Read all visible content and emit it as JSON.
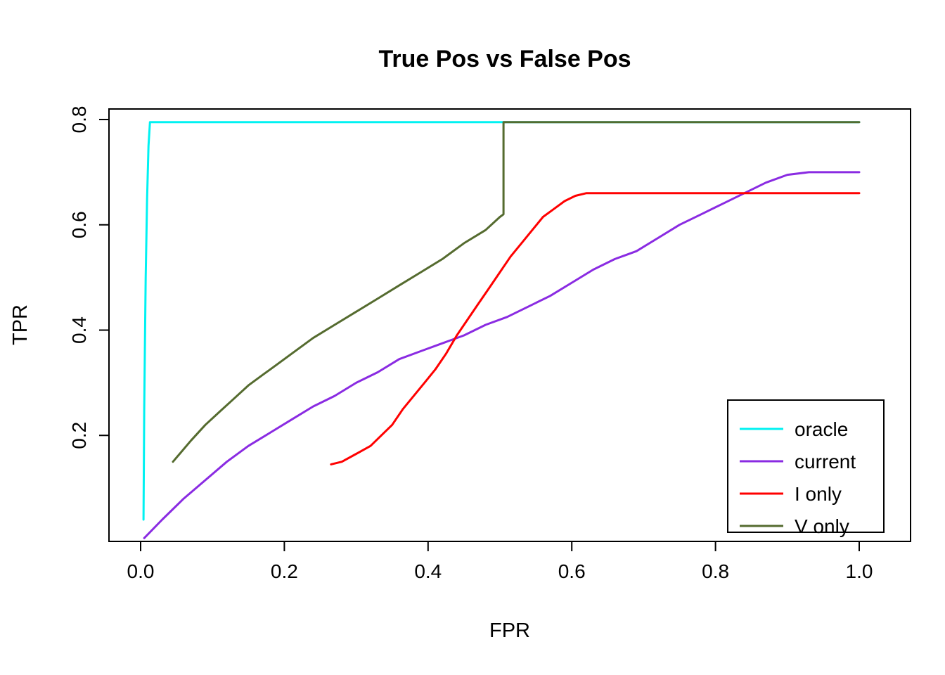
{
  "title": "True Pos vs False Pos",
  "xlabel": "FPR",
  "ylabel": "TPR",
  "chart_data": {
    "type": "line",
    "title": "True Pos vs False Pos",
    "xlabel": "FPR",
    "ylabel": "TPR",
    "xlim": [
      0,
      1
    ],
    "ylim": [
      0,
      0.82
    ],
    "x_ticks": [
      0.0,
      0.2,
      0.4,
      0.6,
      0.8,
      1.0
    ],
    "y_ticks": [
      0.2,
      0.4,
      0.6,
      0.8
    ],
    "grid": false,
    "legend_position": "bottom-right",
    "legend_entries": [
      "oracle",
      "current",
      "I only",
      "V only"
    ],
    "series": [
      {
        "name": "oracle",
        "color": "#00F2F2",
        "points": [
          [
            0.004,
            0.04
          ],
          [
            0.005,
            0.25
          ],
          [
            0.007,
            0.5
          ],
          [
            0.009,
            0.65
          ],
          [
            0.011,
            0.75
          ],
          [
            0.013,
            0.795
          ],
          [
            1.0,
            0.795
          ]
        ]
      },
      {
        "name": "current",
        "color": "#8A2BE2",
        "points": [
          [
            0.005,
            0.005
          ],
          [
            0.03,
            0.04
          ],
          [
            0.06,
            0.08
          ],
          [
            0.09,
            0.115
          ],
          [
            0.12,
            0.15
          ],
          [
            0.15,
            0.18
          ],
          [
            0.18,
            0.205
          ],
          [
            0.21,
            0.23
          ],
          [
            0.24,
            0.255
          ],
          [
            0.27,
            0.275
          ],
          [
            0.3,
            0.3
          ],
          [
            0.33,
            0.32
          ],
          [
            0.36,
            0.345
          ],
          [
            0.39,
            0.36
          ],
          [
            0.42,
            0.375
          ],
          [
            0.45,
            0.39
          ],
          [
            0.48,
            0.41
          ],
          [
            0.51,
            0.425
          ],
          [
            0.54,
            0.445
          ],
          [
            0.57,
            0.465
          ],
          [
            0.6,
            0.49
          ],
          [
            0.63,
            0.515
          ],
          [
            0.66,
            0.535
          ],
          [
            0.69,
            0.55
          ],
          [
            0.72,
            0.575
          ],
          [
            0.75,
            0.6
          ],
          [
            0.78,
            0.62
          ],
          [
            0.81,
            0.64
          ],
          [
            0.84,
            0.66
          ],
          [
            0.87,
            0.68
          ],
          [
            0.9,
            0.695
          ],
          [
            0.93,
            0.7
          ],
          [
            1.0,
            0.7
          ]
        ]
      },
      {
        "name": "I only",
        "color": "#FF0000",
        "points": [
          [
            0.265,
            0.145
          ],
          [
            0.28,
            0.15
          ],
          [
            0.3,
            0.165
          ],
          [
            0.32,
            0.18
          ],
          [
            0.335,
            0.2
          ],
          [
            0.35,
            0.22
          ],
          [
            0.365,
            0.25
          ],
          [
            0.38,
            0.275
          ],
          [
            0.395,
            0.3
          ],
          [
            0.41,
            0.325
          ],
          [
            0.425,
            0.355
          ],
          [
            0.44,
            0.39
          ],
          [
            0.455,
            0.42
          ],
          [
            0.47,
            0.45
          ],
          [
            0.485,
            0.48
          ],
          [
            0.5,
            0.51
          ],
          [
            0.515,
            0.54
          ],
          [
            0.53,
            0.565
          ],
          [
            0.545,
            0.59
          ],
          [
            0.56,
            0.615
          ],
          [
            0.575,
            0.63
          ],
          [
            0.59,
            0.645
          ],
          [
            0.605,
            0.655
          ],
          [
            0.62,
            0.66
          ],
          [
            1.0,
            0.66
          ]
        ]
      },
      {
        "name": "V only",
        "color": "#556B2F",
        "points": [
          [
            0.045,
            0.15
          ],
          [
            0.07,
            0.19
          ],
          [
            0.09,
            0.22
          ],
          [
            0.11,
            0.245
          ],
          [
            0.13,
            0.27
          ],
          [
            0.15,
            0.295
          ],
          [
            0.17,
            0.315
          ],
          [
            0.19,
            0.335
          ],
          [
            0.21,
            0.355
          ],
          [
            0.24,
            0.385
          ],
          [
            0.27,
            0.41
          ],
          [
            0.3,
            0.435
          ],
          [
            0.33,
            0.46
          ],
          [
            0.36,
            0.485
          ],
          [
            0.39,
            0.51
          ],
          [
            0.42,
            0.535
          ],
          [
            0.45,
            0.565
          ],
          [
            0.48,
            0.59
          ],
          [
            0.5,
            0.615
          ],
          [
            0.505,
            0.62
          ],
          [
            0.505,
            0.795
          ],
          [
            1.0,
            0.795
          ]
        ]
      }
    ]
  }
}
